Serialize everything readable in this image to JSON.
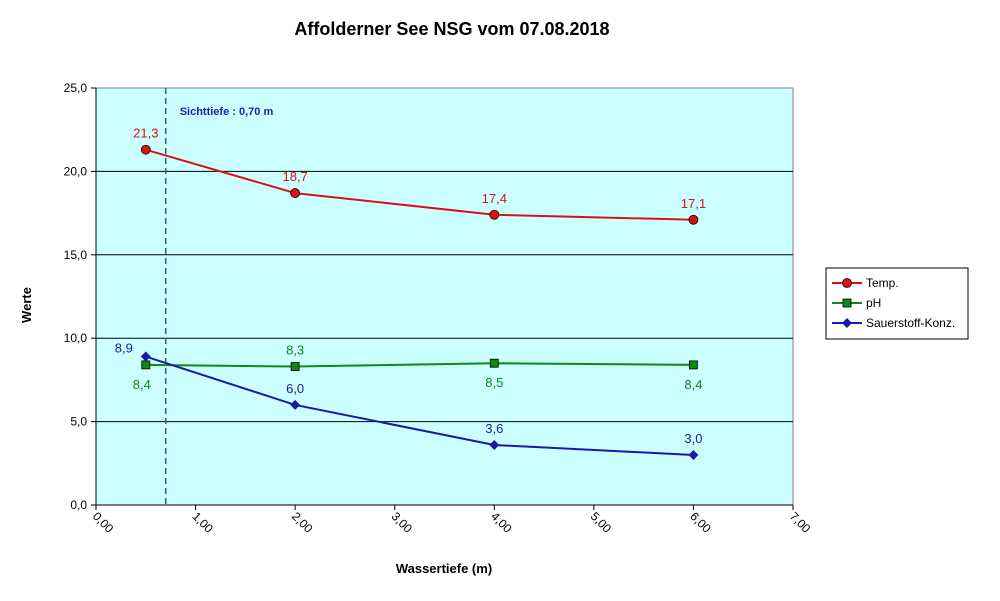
{
  "chart_data": {
    "type": "line",
    "title": "Affolderner See NSG vom 07.08.2018",
    "xlabel": "Wassertiefe (m)",
    "ylabel": "Werte",
    "xlim": [
      0,
      7
    ],
    "ylim": [
      0,
      25
    ],
    "x_ticks": [
      "0,00",
      "1,00",
      "2,00",
      "3,00",
      "4,00",
      "5,00",
      "6,00",
      "7,00"
    ],
    "y_ticks": [
      "0,0",
      "5,0",
      "10,0",
      "15,0",
      "20,0",
      "25,0"
    ],
    "grid": "horizontal",
    "plot_background": "#ccffff",
    "legend_position": "right",
    "annotation": {
      "text": "Sichttiefe : 0,70 m",
      "x": 0.7
    },
    "series": [
      {
        "name": "Temp.",
        "color": "#dd1111",
        "marker": "circle",
        "x": [
          0.5,
          2,
          4,
          6
        ],
        "values": [
          21.3,
          18.7,
          17.4,
          17.1
        ],
        "labels": [
          "21,3",
          "18,7",
          "17,4",
          "17,1"
        ],
        "label_position": "above"
      },
      {
        "name": "pH",
        "color": "#118811",
        "marker": "square",
        "x": [
          0.5,
          2,
          4,
          6
        ],
        "values": [
          8.4,
          8.3,
          8.5,
          8.4
        ],
        "labels": [
          "8,4",
          "8,3",
          "8,5",
          "8,4"
        ],
        "label_position": [
          "below",
          "above",
          "below",
          "below"
        ]
      },
      {
        "name": "Sauerstoff-Konz.",
        "color": "#1a1aa8",
        "marker": "diamond",
        "x": [
          0.5,
          2,
          4,
          6
        ],
        "values": [
          8.9,
          6.0,
          3.6,
          3.0
        ],
        "labels": [
          "8,9",
          "6,0",
          "3,6",
          "3,0"
        ],
        "label_position": "above"
      }
    ]
  }
}
